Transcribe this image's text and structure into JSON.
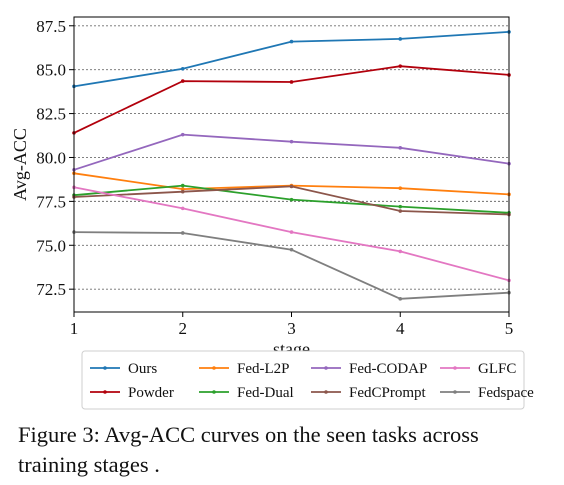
{
  "chart_data": {
    "type": "line",
    "x": [
      1,
      2,
      3,
      4,
      5
    ],
    "xlabel": "stage",
    "ylabel": "Avg-ACC",
    "xlim": [
      1,
      5
    ],
    "ylim": [
      71.2,
      88.0
    ],
    "xticks": [
      "1",
      "2",
      "3",
      "4",
      "5"
    ],
    "yticks": [
      "72.5",
      "75.0",
      "77.5",
      "80.0",
      "82.5",
      "85.0",
      "87.5"
    ],
    "ytick_values": [
      72.5,
      75.0,
      77.5,
      80.0,
      82.5,
      85.0,
      87.5
    ],
    "grid": "horizontal dotted",
    "legend_position": "bottom, outside plot",
    "series": [
      {
        "name": "Ours",
        "color": "#1f77b4",
        "values": [
          84.05,
          85.05,
          86.6,
          86.75,
          87.15
        ]
      },
      {
        "name": "Powder",
        "color": "#b2000c",
        "values": [
          81.4,
          84.35,
          84.3,
          85.2,
          84.7
        ]
      },
      {
        "name": "Fed-L2P",
        "color": "#ff7f0e",
        "values": [
          79.1,
          78.2,
          78.4,
          78.25,
          77.9
        ]
      },
      {
        "name": "Fed-Dual",
        "color": "#2ca02c",
        "values": [
          77.85,
          78.4,
          77.6,
          77.2,
          76.85
        ]
      },
      {
        "name": "Fed-CODAP",
        "color": "#9467bd",
        "values": [
          79.3,
          81.3,
          80.9,
          80.55,
          79.65
        ]
      },
      {
        "name": "FedCPrompt",
        "color": "#8c564b",
        "values": [
          77.75,
          78.05,
          78.35,
          76.95,
          76.75
        ]
      },
      {
        "name": "GLFC",
        "color": "#e377c2",
        "values": [
          78.3,
          77.1,
          75.75,
          74.65,
          73.0
        ]
      },
      {
        "name": "Fedspace",
        "color": "#7f7f7f",
        "values": [
          75.75,
          75.7,
          74.75,
          71.95,
          72.3
        ]
      }
    ]
  },
  "caption": "Figure 3:  Avg-ACC curves on the seen tasks across training stages ."
}
